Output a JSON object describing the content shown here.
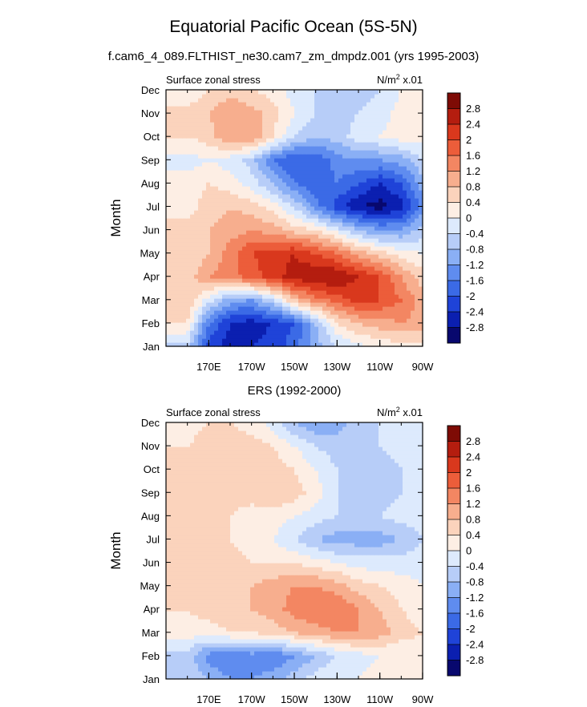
{
  "figure": {
    "title": "Equatorial Pacific Ocean (5S-5N)",
    "subtitle": "f.cam6_4_089.FLTHIST_ne30.cam7_zm_dmpdz.001 (yrs 1995-2003)"
  },
  "colors": {
    "palette": [
      "#08086e",
      "#0b1fb0",
      "#1f43d8",
      "#3b6ae6",
      "#5f8cef",
      "#8aaff5",
      "#b7cdf8",
      "#ddeafd",
      "#fdeee4",
      "#fbd3bc",
      "#f7ae8e",
      "#f38662",
      "#ec5d3a",
      "#d9381d",
      "#b41d0f",
      "#7e0b05"
    ],
    "tick_color": "#000000"
  },
  "chart_data": [
    {
      "type": "heatmap",
      "title": "",
      "left_label": "Surface zonal stress",
      "right_label": "N/m",
      "right_label_sup": "2",
      "right_label_suffix": " x.01",
      "xlabel": "",
      "ylabel": "Month",
      "x_ticks": [
        "170E",
        "170W",
        "150W",
        "130W",
        "110W",
        "90W"
      ],
      "y_ticks": [
        "Jan",
        "Feb",
        "Mar",
        "Apr",
        "May",
        "Jun",
        "Jul",
        "Aug",
        "Sep",
        "Oct",
        "Nov",
        "Dec"
      ],
      "colorbar_labels": [
        "2.8",
        "2.4",
        "2",
        "1.6",
        "1.2",
        "0.8",
        "0.4",
        "0",
        "-0.4",
        "-0.8",
        "-1.2",
        "-1.6",
        "-2",
        "-2.4",
        "-2.8"
      ],
      "x_lon": [
        160,
        170,
        180,
        190,
        200,
        210,
        220,
        230,
        240,
        250,
        260,
        270
      ],
      "rows": [
        [
          -0.6,
          -2.2,
          -2.6,
          -2.4,
          -2.2,
          -1.8,
          -1.0,
          -0.4,
          -0.1,
          0.1,
          0.2,
          0.2
        ],
        [
          0.4,
          -1.6,
          -2.4,
          -2.6,
          -2.4,
          -2.0,
          -0.8,
          0.4,
          0.8,
          1.0,
          1.2,
          1.0
        ],
        [
          0.8,
          -0.2,
          -1.0,
          -1.2,
          -0.4,
          0.8,
          1.4,
          1.8,
          2.2,
          2.0,
          1.6,
          1.0
        ],
        [
          0.6,
          1.2,
          1.4,
          1.8,
          2.2,
          2.6,
          2.8,
          2.8,
          2.4,
          2.0,
          1.2,
          0.6
        ],
        [
          0.4,
          0.8,
          1.4,
          2.0,
          2.2,
          2.4,
          2.0,
          1.6,
          1.0,
          0.6,
          0.2,
          0.0
        ],
        [
          0.6,
          0.8,
          1.0,
          1.2,
          1.0,
          0.6,
          0.4,
          -0.2,
          -0.8,
          -1.2,
          -1.2,
          -0.6
        ],
        [
          0.2,
          0.6,
          0.8,
          0.6,
          0.2,
          -0.4,
          -1.4,
          -2.2,
          -2.8,
          -3.0,
          -2.6,
          -1.4
        ],
        [
          0.2,
          0.4,
          0.2,
          -0.2,
          -0.8,
          -1.6,
          -2.0,
          -1.6,
          -2.0,
          -2.4,
          -2.0,
          -1.0
        ],
        [
          -0.2,
          0.0,
          -0.2,
          -0.6,
          -1.6,
          -2.0,
          -2.0,
          -1.4,
          -1.2,
          -1.2,
          -1.0,
          -0.4
        ],
        [
          0.4,
          0.6,
          1.2,
          1.2,
          0.4,
          -0.4,
          -0.8,
          -0.6,
          -0.2,
          0.0,
          0.2,
          0.2
        ],
        [
          0.6,
          0.8,
          1.2,
          1.0,
          0.6,
          0.0,
          -0.4,
          -0.6,
          -0.4,
          -0.2,
          0.2,
          0.4
        ],
        [
          0.0,
          0.4,
          0.6,
          0.4,
          0.2,
          -0.2,
          -0.4,
          -0.8,
          -0.6,
          -0.4,
          0.0,
          0.2
        ]
      ]
    },
    {
      "type": "heatmap",
      "title": "ERS (1992-2000)",
      "left_label": "Surface zonal stress",
      "right_label": "N/m",
      "right_label_sup": "2",
      "right_label_suffix": " x.01",
      "xlabel": "",
      "ylabel": "Month",
      "x_ticks": [
        "170E",
        "170W",
        "150W",
        "130W",
        "110W",
        "90W"
      ],
      "y_ticks": [
        "Jan",
        "Feb",
        "Mar",
        "Apr",
        "May",
        "Jun",
        "Jul",
        "Aug",
        "Sep",
        "Oct",
        "Nov",
        "Dec"
      ],
      "colorbar_labels": [
        "2.8",
        "2.4",
        "2",
        "1.6",
        "1.2",
        "0.8",
        "0.4",
        "0",
        "-0.4",
        "-0.8",
        "-1.2",
        "-1.6",
        "-2",
        "-2.4",
        "-2.8"
      ],
      "x_lon": [
        160,
        170,
        180,
        190,
        200,
        210,
        220,
        230,
        240,
        250,
        260,
        270
      ],
      "rows": [
        [
          -0.4,
          -0.8,
          -1.2,
          -1.2,
          -1.0,
          -0.6,
          -0.2,
          0.0,
          0.0,
          0.2,
          0.2,
          0.2
        ],
        [
          -0.6,
          -1.4,
          -1.6,
          -1.4,
          -1.6,
          -1.2,
          -0.8,
          -0.4,
          -0.2,
          0.0,
          0.0,
          0.2
        ],
        [
          0.2,
          0.2,
          0.4,
          0.4,
          0.6,
          0.8,
          1.0,
          1.2,
          1.2,
          1.0,
          0.6,
          0.4
        ],
        [
          0.4,
          0.6,
          0.6,
          0.8,
          1.0,
          1.4,
          1.6,
          1.6,
          1.2,
          0.8,
          0.4,
          0.2
        ],
        [
          0.4,
          0.6,
          0.6,
          0.8,
          1.0,
          1.2,
          1.2,
          1.0,
          0.6,
          0.4,
          0.2,
          0.0
        ],
        [
          0.4,
          0.4,
          0.6,
          0.4,
          0.4,
          0.4,
          0.2,
          0.0,
          -0.2,
          -0.2,
          -0.2,
          -0.2
        ],
        [
          0.4,
          0.4,
          0.4,
          0.2,
          0.0,
          -0.4,
          -0.8,
          -1.0,
          -1.0,
          -1.0,
          -0.8,
          -0.4
        ],
        [
          0.4,
          0.4,
          0.4,
          0.2,
          0.2,
          0.0,
          -0.2,
          -0.4,
          -0.4,
          -0.4,
          -0.2,
          -0.2
        ],
        [
          0.4,
          0.4,
          0.6,
          0.6,
          0.8,
          0.6,
          0.2,
          -0.4,
          -0.6,
          -0.6,
          -0.4,
          -0.2
        ],
        [
          0.4,
          0.6,
          0.6,
          0.6,
          0.6,
          0.4,
          0.0,
          -0.4,
          -0.6,
          -0.6,
          -0.4,
          -0.2
        ],
        [
          0.4,
          0.6,
          0.6,
          0.6,
          0.4,
          0.0,
          -0.4,
          -0.6,
          -0.6,
          -0.4,
          -0.2,
          0.0
        ],
        [
          0.2,
          0.4,
          0.4,
          0.2,
          -0.2,
          -0.8,
          -1.2,
          -1.0,
          -0.6,
          -0.4,
          -0.2,
          0.0
        ]
      ]
    }
  ]
}
